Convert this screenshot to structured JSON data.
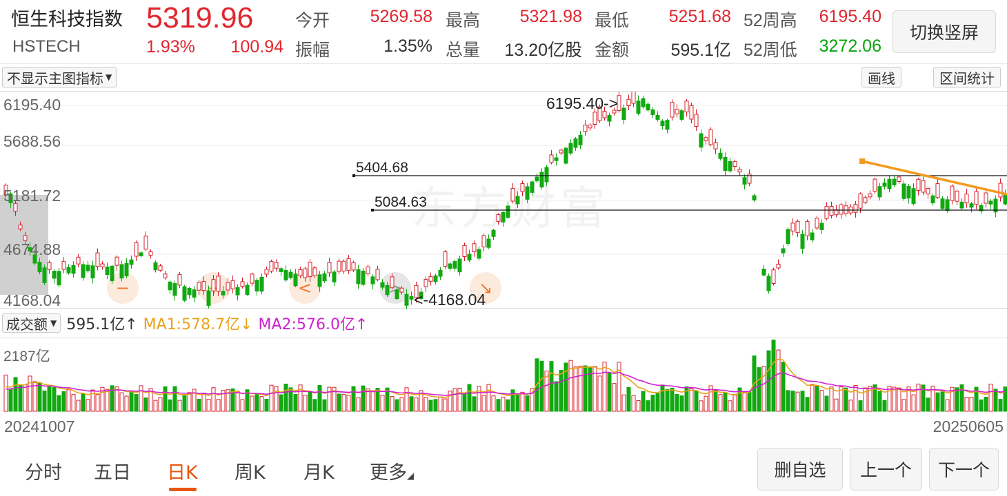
{
  "header": {
    "name": "恒生科技指数",
    "code": "HSTECH",
    "price": "5319.96",
    "change_pct": "1.93%",
    "change": "100.94",
    "stats": {
      "open_label": "今开",
      "open": "5269.58",
      "high_label": "最高",
      "high": "5321.98",
      "low_label": "最低",
      "low": "5251.68",
      "w52h_label": "52周高",
      "w52h": "6195.40",
      "amp_label": "振幅",
      "amp": "1.35%",
      "vol_label": "总量",
      "vol": "13.20亿股",
      "amt_label": "金额",
      "amt": "595.1亿",
      "w52l_label": "52周低",
      "w52l": "3272.06"
    },
    "switch_button": "切换竖屏"
  },
  "toolbar": {
    "indicator_dropdown": "不显示主图指标",
    "draw_line": "画线",
    "range_stats": "区间统计"
  },
  "main_chart": {
    "y_labels": [
      "6195.40",
      "5688.56",
      "5181.72",
      "4674.88",
      "4168.04"
    ],
    "high_marker": "6195.40->",
    "low_marker": "<-4168.04",
    "line1_label": "5404.68",
    "line2_label": "5084.63",
    "watermark": "东方财富",
    "colors": {
      "up": "#d4202a",
      "down": "#12a812",
      "trendline": "#f39a1e"
    }
  },
  "volume": {
    "dropdown": "成交额",
    "value": "595.1亿↑",
    "ma1": "MA1:578.7亿↓",
    "ma2": "MA2:576.0亿↑",
    "max_label": "2187亿",
    "colors": {
      "ma1": "#e8a317",
      "ma2": "#d020d0"
    }
  },
  "dates": {
    "start": "20241007",
    "end": "20250605"
  },
  "tabs": [
    "分时",
    "五日",
    "日K",
    "周K",
    "月K",
    "更多"
  ],
  "active_tab": "日K",
  "buttons": {
    "remove_watch": "删自选",
    "prev": "上一个",
    "next": "下一个"
  }
}
